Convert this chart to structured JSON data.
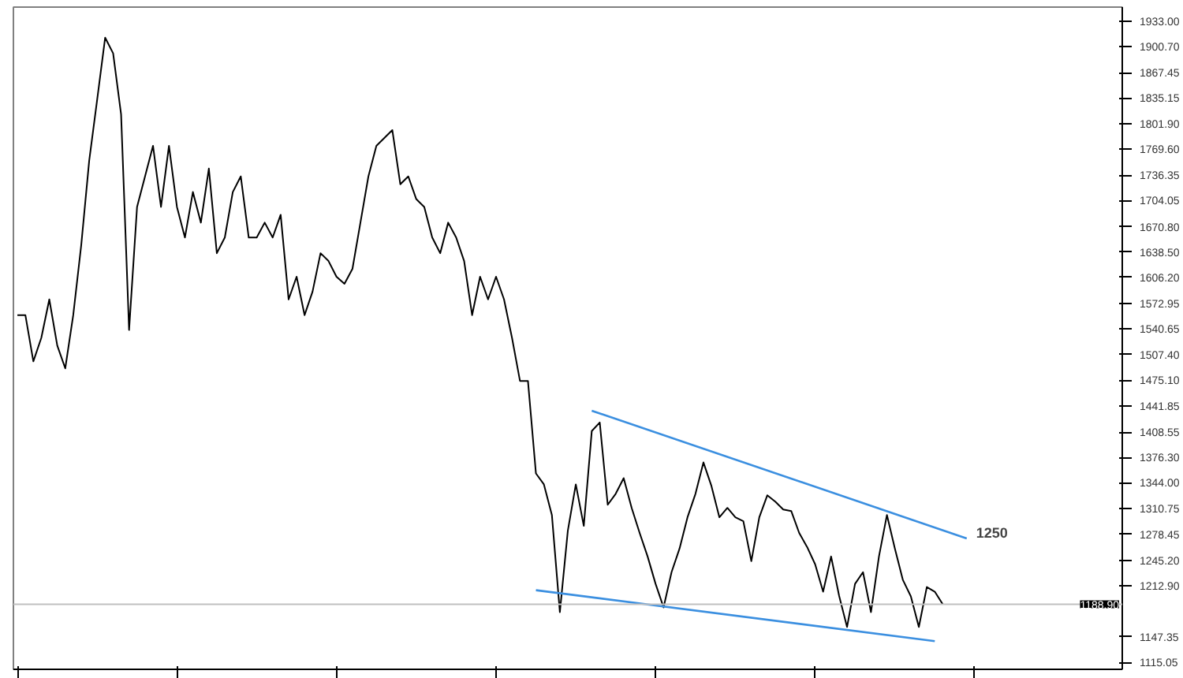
{
  "chart_data": {
    "type": "line",
    "categories": [
      null,
      null,
      null,
      null,
      null,
      null,
      null,
      null,
      null,
      null,
      null,
      null,
      null,
      null,
      null,
      null,
      null,
      null,
      null,
      null,
      null,
      null,
      null,
      null,
      null,
      null,
      null,
      null,
      null,
      null,
      null,
      null,
      null,
      null,
      null,
      null,
      null,
      null,
      null,
      null,
      null,
      null,
      null,
      null,
      null,
      null,
      null,
      null,
      null,
      null,
      null,
      null,
      null,
      null,
      null,
      null,
      null,
      null,
      null,
      null,
      null,
      null,
      null,
      null,
      null,
      null,
      null,
      null,
      null,
      null,
      null,
      null,
      null,
      null,
      null,
      null,
      null,
      null,
      null,
      null,
      null,
      null,
      null,
      null,
      null,
      null,
      null,
      null,
      null,
      null,
      null,
      null,
      null,
      null,
      null,
      null,
      null,
      null,
      null,
      null,
      null,
      null,
      null,
      null,
      null,
      null,
      null,
      null,
      null,
      null,
      null,
      null,
      null,
      null,
      null,
      null,
      null,
      null,
      null,
      null,
      null,
      null,
      null,
      null,
      null,
      null,
      null,
      null,
      null,
      null,
      null,
      null,
      null,
      null,
      null,
      null,
      null,
      null,
      null
    ],
    "series": [
      {
        "color": "#000000",
        "values": [
          1558,
          1558,
          1499,
          1529,
          1578,
          1519,
          1490,
          1558,
          1647,
          1755,
          1833,
          1912,
          1892,
          1814,
          1539,
          1696,
          1735,
          1774,
          1696,
          1774,
          1696,
          1657,
          1715,
          1676,
          1745,
          1637,
          1657,
          1715,
          1735,
          1657,
          1657,
          1676,
          1657,
          1686,
          1578,
          1607,
          1558,
          1588,
          1637,
          1627,
          1607,
          1598,
          1617,
          1676,
          1735,
          1774,
          1784,
          1794,
          1725,
          1735,
          1706,
          1696,
          1657,
          1637,
          1676,
          1657,
          1627,
          1558,
          1607,
          1578,
          1607,
          1578,
          1529,
          1474,
          1474,
          1356,
          1342,
          1303,
          1179,
          1283,
          1342,
          1289,
          1410,
          1421,
          1316,
          1330,
          1350,
          1312,
          1280,
          1250,
          1215,
          1185,
          1230,
          1260,
          1300,
          1330,
          1370,
          1340,
          1300,
          1312,
          1300,
          1295,
          1244,
          1300,
          1328,
          1320,
          1310,
          1308,
          1280,
          1262,
          1240,
          1205,
          1250,
          1200,
          1160,
          1215,
          1230,
          1179,
          1250,
          1303,
          1260,
          1220,
          1199,
          1160,
          1211,
          1205,
          1189,
          null,
          null,
          null,
          null,
          null,
          null,
          null,
          null,
          null,
          null,
          null,
          null,
          null,
          null,
          null,
          null,
          null,
          null,
          null,
          null,
          null,
          null
        ]
      },
      {
        "type": "line",
        "color": "#3b8fe0",
        "values": [
          null,
          null,
          null,
          null,
          null,
          null,
          null,
          null,
          null,
          null,
          null,
          null,
          null,
          null,
          null,
          null,
          null,
          null,
          null,
          null,
          null,
          null,
          null,
          null,
          null,
          null,
          null,
          null,
          null,
          null,
          null,
          null,
          null,
          null,
          null,
          null,
          null,
          null,
          null,
          null,
          null,
          null,
          null,
          null,
          null,
          null,
          null,
          null,
          null,
          null,
          null,
          null,
          null,
          null,
          null,
          null,
          null,
          null,
          null,
          null,
          null,
          null,
          null,
          null,
          null,
          null,
          null,
          null,
          null,
          null,
          null,
          null,
          1436,
          null,
          null,
          null,
          null,
          null,
          null,
          null,
          null,
          null,
          null,
          null,
          null,
          null,
          null,
          null,
          null,
          null,
          null,
          null,
          null,
          null,
          null,
          null,
          null,
          null,
          null,
          null,
          null,
          null,
          null,
          null,
          null,
          null,
          null,
          null,
          null,
          null,
          null,
          null,
          null,
          null,
          null,
          null,
          null,
          null,
          null,
          1273,
          null,
          null,
          null,
          null,
          null,
          null,
          null,
          null,
          null,
          null,
          null,
          null,
          null,
          null,
          null,
          null,
          null,
          null,
          null
        ]
      },
      {
        "type": "line",
        "color": "#3b8fe0",
        "values": [
          null,
          null,
          null,
          null,
          null,
          null,
          null,
          null,
          null,
          null,
          null,
          null,
          null,
          null,
          null,
          null,
          null,
          null,
          null,
          null,
          null,
          null,
          null,
          null,
          null,
          null,
          null,
          null,
          null,
          null,
          null,
          null,
          null,
          null,
          null,
          null,
          null,
          null,
          null,
          null,
          null,
          null,
          null,
          null,
          null,
          null,
          null,
          null,
          null,
          null,
          null,
          null,
          null,
          null,
          null,
          null,
          null,
          null,
          null,
          null,
          null,
          null,
          null,
          null,
          null,
          1207,
          null,
          null,
          null,
          null,
          null,
          null,
          null,
          null,
          null,
          null,
          null,
          null,
          null,
          null,
          null,
          null,
          null,
          null,
          null,
          null,
          null,
          null,
          null,
          null,
          null,
          null,
          null,
          null,
          null,
          null,
          null,
          null,
          null,
          null,
          null,
          null,
          null,
          null,
          null,
          null,
          null,
          null,
          null,
          null,
          null,
          null,
          null,
          null,
          null,
          1142,
          null,
          null,
          null,
          null,
          null,
          null,
          null,
          null,
          null,
          null,
          null,
          null,
          null,
          null,
          null,
          null,
          null,
          null,
          null,
          null,
          null,
          null,
          null
        ]
      }
    ],
    "annotations": [
      "1250"
    ],
    "ylim": [
      1106,
      1951
    ],
    "yticks": [
      {
        "value": 1933,
        "label": "1933.00"
      },
      {
        "value": 1900.7,
        "label": "1900.70"
      },
      {
        "value": 1867.45,
        "label": "1867.45"
      },
      {
        "value": 1835.15,
        "label": "1835.15"
      },
      {
        "value": 1801.9,
        "label": "1801.90"
      },
      {
        "value": 1769.6,
        "label": "1769.60"
      },
      {
        "value": 1736.35,
        "label": "1736.35"
      },
      {
        "value": 1704.05,
        "label": "1704.05"
      },
      {
        "value": 1670.8,
        "label": "1670.80"
      },
      {
        "value": 1638.5,
        "label": "1638.50"
      },
      {
        "value": 1606.2,
        "label": "1606.20"
      },
      {
        "value": 1572.95,
        "label": "1572.95"
      },
      {
        "value": 1540.65,
        "label": "1540.65"
      },
      {
        "value": 1507.4,
        "label": "1507.40"
      },
      {
        "value": 1475.1,
        "label": "1475.10"
      },
      {
        "value": 1441.85,
        "label": "1441.85"
      },
      {
        "value": 1408.55,
        "label": "1408.55"
      },
      {
        "value": 1376.3,
        "label": "1376.30"
      },
      {
        "value": 1344,
        "label": "1344.00"
      },
      {
        "value": 1310.75,
        "label": "1310.75"
      },
      {
        "value": 1278.45,
        "label": "1278.45"
      },
      {
        "value": 1245.2,
        "label": "1245.20"
      },
      {
        "value": 1212.9,
        "label": "1212.90"
      },
      {
        "value": 1147.35,
        "label": "1147.35"
      },
      {
        "value": 1115.05,
        "label": "1115.05"
      }
    ],
    "ref_lines": [
      {
        "axis": "y",
        "value": 1188.9,
        "label": "1188.90",
        "color": "#c0c0c0"
      }
    ],
    "tick_labels": "y"
  }
}
